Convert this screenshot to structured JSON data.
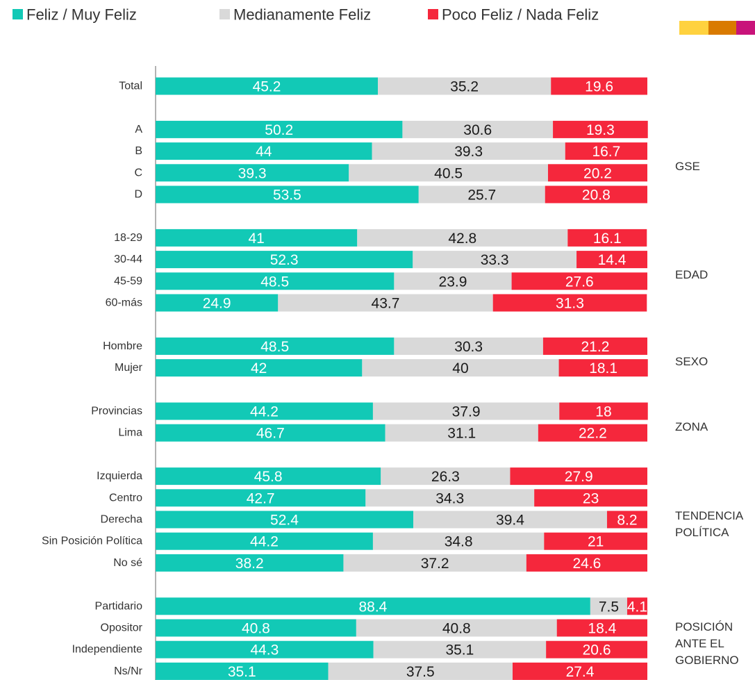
{
  "chart_data": {
    "type": "stacked-bar-horizontal",
    "xlim": [
      0,
      100
    ],
    "categories": [
      "Total",
      null,
      "A",
      "B",
      "C",
      "D",
      null,
      "18-29",
      "30-44",
      "45-59",
      "60-más",
      null,
      "Hombre",
      "Mujer",
      null,
      "Provincias",
      "Lima",
      null,
      "Izquierda",
      "Centro",
      "Derecha",
      "Sin Posición Política",
      "No sé",
      null,
      "Partidario",
      "Opositor",
      "Independiente",
      "Ns/Nr"
    ],
    "groups": [
      null,
      null,
      "GSE",
      "GSE",
      "GSE",
      "GSE",
      null,
      "EDAD",
      "EDAD",
      "EDAD",
      "EDAD",
      null,
      "SEXO",
      "SEXO",
      null,
      "ZONA",
      "ZONA",
      null,
      "TENDENCIA\nPOLÍTICA",
      "TENDENCIA\nPOLÍTICA",
      "TENDENCIA\nPOLÍTICA",
      "TENDENCIA\nPOLÍTICA",
      "TENDENCIA\nPOLÍTICA",
      null,
      "POSICIÓN\nANTE EL\nGOBIERNO",
      "POSICIÓN\nANTE EL\nGOBIERNO",
      "POSICIÓN\nANTE EL\nGOBIERNO",
      "POSICIÓN\nANTE EL\nGOBIERNO"
    ],
    "series": [
      {
        "name": "Feliz / Muy Feliz",
        "color": "#12c9b6",
        "label_color": "#ffffff",
        "values": [
          45.2,
          null,
          50.2,
          44,
          39.3,
          53.5,
          null,
          41,
          52.3,
          48.5,
          24.9,
          null,
          48.5,
          42,
          null,
          44.2,
          46.7,
          null,
          45.8,
          42.7,
          52.4,
          44.2,
          38.2,
          null,
          88.4,
          40.8,
          44.3,
          35.1
        ]
      },
      {
        "name": "Medianamente Feliz",
        "color": "#d9d9d9",
        "label_color": "#1a1a1a",
        "values": [
          35.2,
          null,
          30.6,
          39.3,
          40.5,
          25.7,
          null,
          42.8,
          33.3,
          23.9,
          43.7,
          null,
          30.3,
          40,
          null,
          37.9,
          31.1,
          null,
          26.3,
          34.3,
          39.4,
          34.8,
          37.2,
          null,
          7.5,
          40.8,
          35.1,
          37.5
        ]
      },
      {
        "name": "Poco Feliz / Nada Feliz",
        "color": "#f5273c",
        "label_color": "#ffffff",
        "values": [
          19.6,
          null,
          19.3,
          16.7,
          20.2,
          20.8,
          null,
          16.1,
          14.4,
          27.6,
          31.3,
          null,
          21.2,
          18.1,
          null,
          18,
          22.2,
          null,
          27.9,
          23,
          8.2,
          21,
          24.6,
          null,
          4.1,
          18.4,
          20.6,
          27.4
        ]
      }
    ]
  }
}
